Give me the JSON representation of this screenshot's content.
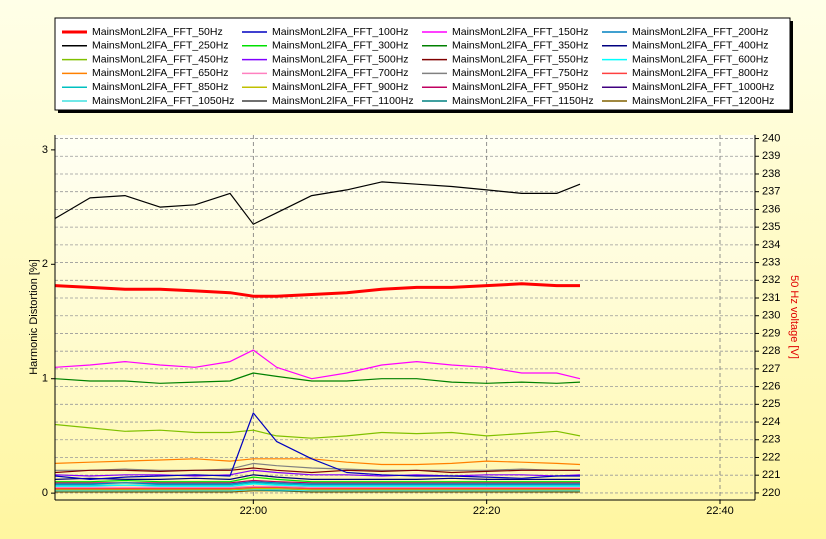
{
  "chart_data": {
    "type": "line",
    "ylabel": "Harmonic Distortion [%]",
    "y2label": "50 Hz voltage [V]",
    "x": [
      "21:43",
      "21:46",
      "21:49",
      "21:52",
      "21:55",
      "21:58",
      "22:00",
      "22:02",
      "22:05",
      "22:08",
      "22:11",
      "22:14",
      "22:17",
      "22:20",
      "22:23",
      "22:26",
      "22:28"
    ],
    "xlim": [
      "21:43",
      "22:43"
    ],
    "xticks": [
      "22:00",
      "22:20",
      "22:40"
    ],
    "ylim": [
      -0.06,
      3.13
    ],
    "yticks": [
      0,
      1,
      2,
      3
    ],
    "y2lim": [
      219.6,
      240.2
    ],
    "y2ticks": [
      220,
      221,
      222,
      223,
      224,
      225,
      226,
      227,
      228,
      229,
      230,
      231,
      232,
      233,
      234,
      235,
      236,
      237,
      238,
      239,
      240
    ],
    "grid": true,
    "legend": "top",
    "series": [
      {
        "name": "MainsMonL2lFA_FFT_50Hz",
        "color": "#ff0000",
        "axis": "y2",
        "line_width": 3,
        "values": [
          231.7,
          231.6,
          231.5,
          231.5,
          231.4,
          231.3,
          231.1,
          231.1,
          231.2,
          231.3,
          231.5,
          231.6,
          231.6,
          231.7,
          231.8,
          231.7,
          231.7
        ]
      },
      {
        "name": "MainsMonL2lFA_FFT_100Hz",
        "color": "#0000c0",
        "values": [
          0.15,
          0.12,
          0.14,
          0.15,
          0.16,
          0.15,
          0.7,
          0.45,
          0.3,
          0.18,
          0.16,
          0.15,
          0.15,
          0.14,
          0.13,
          0.15,
          0.15
        ]
      },
      {
        "name": "MainsMonL2lFA_FFT_150Hz",
        "color": "#ff00ff",
        "values": [
          1.1,
          1.12,
          1.15,
          1.12,
          1.1,
          1.15,
          1.25,
          1.1,
          1.0,
          1.05,
          1.12,
          1.15,
          1.12,
          1.1,
          1.05,
          1.05,
          1.0
        ]
      },
      {
        "name": "MainsMonL2lFA_FFT_200Hz",
        "color": "#0080c0",
        "values": [
          0.08,
          0.08,
          0.09,
          0.08,
          0.08,
          0.08,
          0.1,
          0.09,
          0.08,
          0.08,
          0.08,
          0.08,
          0.08,
          0.08,
          0.08,
          0.08,
          0.08
        ]
      },
      {
        "name": "MainsMonL2lFA_FFT_250Hz",
        "color": "#000000",
        "values": [
          2.4,
          2.58,
          2.6,
          2.5,
          2.52,
          2.62,
          2.35,
          2.45,
          2.6,
          2.65,
          2.72,
          2.7,
          2.68,
          2.65,
          2.62,
          2.62,
          2.7
        ]
      },
      {
        "name": "MainsMonL2lFA_FFT_300Hz",
        "color": "#00e000",
        "values": [
          0.1,
          0.1,
          0.11,
          0.1,
          0.1,
          0.1,
          0.14,
          0.12,
          0.1,
          0.1,
          0.1,
          0.1,
          0.1,
          0.1,
          0.1,
          0.1,
          0.1
        ]
      },
      {
        "name": "MainsMonL2lFA_FFT_350Hz",
        "color": "#008000",
        "values": [
          1.0,
          0.98,
          0.98,
          0.96,
          0.97,
          0.98,
          1.05,
          1.02,
          0.98,
          0.98,
          1.0,
          1.0,
          0.97,
          0.96,
          0.97,
          0.96,
          0.97
        ]
      },
      {
        "name": "MainsMonL2lFA_FFT_400Hz",
        "color": "#000080",
        "values": [
          0.12,
          0.13,
          0.12,
          0.12,
          0.13,
          0.12,
          0.16,
          0.14,
          0.12,
          0.12,
          0.12,
          0.12,
          0.13,
          0.12,
          0.12,
          0.12,
          0.12
        ]
      },
      {
        "name": "MainsMonL2lFA_FFT_450Hz",
        "color": "#80c000",
        "values": [
          0.6,
          0.57,
          0.54,
          0.55,
          0.53,
          0.53,
          0.55,
          0.5,
          0.48,
          0.5,
          0.53,
          0.52,
          0.53,
          0.5,
          0.52,
          0.54,
          0.5
        ]
      },
      {
        "name": "MainsMonL2lFA_FFT_500Hz",
        "color": "#8000ff",
        "values": [
          0.16,
          0.15,
          0.16,
          0.16,
          0.15,
          0.16,
          0.2,
          0.18,
          0.16,
          0.16,
          0.15,
          0.16,
          0.15,
          0.16,
          0.16,
          0.15,
          0.16
        ]
      },
      {
        "name": "MainsMonL2lFA_FFT_550Hz",
        "color": "#800000",
        "values": [
          0.18,
          0.2,
          0.2,
          0.19,
          0.2,
          0.2,
          0.22,
          0.2,
          0.18,
          0.2,
          0.19,
          0.2,
          0.18,
          0.19,
          0.2,
          0.2,
          0.2
        ]
      },
      {
        "name": "MainsMonL2lFA_FFT_600Hz",
        "color": "#00ffff",
        "values": [
          0.06,
          0.06,
          0.07,
          0.06,
          0.06,
          0.06,
          0.08,
          0.07,
          0.06,
          0.06,
          0.06,
          0.06,
          0.06,
          0.06,
          0.06,
          0.06,
          0.06
        ]
      },
      {
        "name": "MainsMonL2lFA_FFT_650Hz",
        "color": "#ff8000",
        "values": [
          0.26,
          0.27,
          0.28,
          0.29,
          0.3,
          0.28,
          0.3,
          0.3,
          0.3,
          0.27,
          0.25,
          0.25,
          0.26,
          0.28,
          0.27,
          0.26,
          0.25
        ]
      },
      {
        "name": "MainsMonL2lFA_FFT_700Hz",
        "color": "#ff80c0",
        "values": [
          0.05,
          0.05,
          0.05,
          0.05,
          0.05,
          0.05,
          0.06,
          0.06,
          0.05,
          0.05,
          0.05,
          0.05,
          0.05,
          0.05,
          0.05,
          0.05,
          0.05
        ]
      },
      {
        "name": "MainsMonL2lFA_FFT_750Hz",
        "color": "#808080",
        "values": [
          0.2,
          0.2,
          0.21,
          0.2,
          0.2,
          0.21,
          0.26,
          0.24,
          0.22,
          0.21,
          0.2,
          0.2,
          0.2,
          0.2,
          0.21,
          0.2,
          0.2
        ]
      },
      {
        "name": "MainsMonL2lFA_FFT_800Hz",
        "color": "#ff4040",
        "values": [
          0.04,
          0.04,
          0.04,
          0.04,
          0.04,
          0.04,
          0.05,
          0.05,
          0.04,
          0.04,
          0.04,
          0.04,
          0.04,
          0.04,
          0.04,
          0.04,
          0.04
        ]
      },
      {
        "name": "MainsMonL2lFA_FFT_850Hz",
        "color": "#00c0c0",
        "values": [
          0.07,
          0.07,
          0.07,
          0.07,
          0.07,
          0.07,
          0.09,
          0.08,
          0.07,
          0.07,
          0.07,
          0.07,
          0.07,
          0.07,
          0.07,
          0.07,
          0.07
        ]
      },
      {
        "name": "MainsMonL2lFA_FFT_900Hz",
        "color": "#c0c000",
        "values": [
          0.03,
          0.03,
          0.03,
          0.03,
          0.03,
          0.03,
          0.04,
          0.04,
          0.03,
          0.03,
          0.03,
          0.03,
          0.03,
          0.03,
          0.03,
          0.03,
          0.03
        ]
      },
      {
        "name": "MainsMonL2lFA_FFT_950Hz",
        "color": "#c00060",
        "values": [
          0.09,
          0.09,
          0.09,
          0.09,
          0.09,
          0.09,
          0.11,
          0.1,
          0.09,
          0.09,
          0.09,
          0.09,
          0.09,
          0.09,
          0.09,
          0.09,
          0.09
        ]
      },
      {
        "name": "MainsMonL2lFA_FFT_1000Hz",
        "color": "#400080",
        "values": [
          0.04,
          0.04,
          0.04,
          0.04,
          0.04,
          0.04,
          0.05,
          0.05,
          0.04,
          0.04,
          0.04,
          0.04,
          0.04,
          0.04,
          0.04,
          0.04,
          0.04
        ]
      },
      {
        "name": "MainsMonL2lFA_FFT_1050Hz",
        "color": "#40e0e0",
        "values": [
          0.02,
          0.02,
          0.02,
          0.02,
          0.02,
          0.02,
          0.03,
          0.03,
          0.02,
          0.02,
          0.02,
          0.02,
          0.02,
          0.02,
          0.02,
          0.02,
          0.02
        ]
      },
      {
        "name": "MainsMonL2lFA_FFT_1100Hz",
        "color": "#404040",
        "values": [
          0.03,
          0.03,
          0.03,
          0.03,
          0.03,
          0.03,
          0.04,
          0.03,
          0.03,
          0.03,
          0.03,
          0.03,
          0.03,
          0.03,
          0.03,
          0.03,
          0.03
        ]
      },
      {
        "name": "MainsMonL2lFA_FFT_1150Hz",
        "color": "#008080",
        "values": [
          0.02,
          0.02,
          0.02,
          0.02,
          0.02,
          0.02,
          0.03,
          0.02,
          0.02,
          0.02,
          0.02,
          0.02,
          0.02,
          0.02,
          0.02,
          0.02,
          0.02
        ]
      },
      {
        "name": "MainsMonL2lFA_FFT_1200Hz",
        "color": "#806000",
        "values": [
          0.01,
          0.01,
          0.01,
          0.01,
          0.01,
          0.01,
          0.02,
          0.02,
          0.01,
          0.01,
          0.01,
          0.01,
          0.01,
          0.01,
          0.01,
          0.01,
          0.01
        ]
      }
    ]
  }
}
